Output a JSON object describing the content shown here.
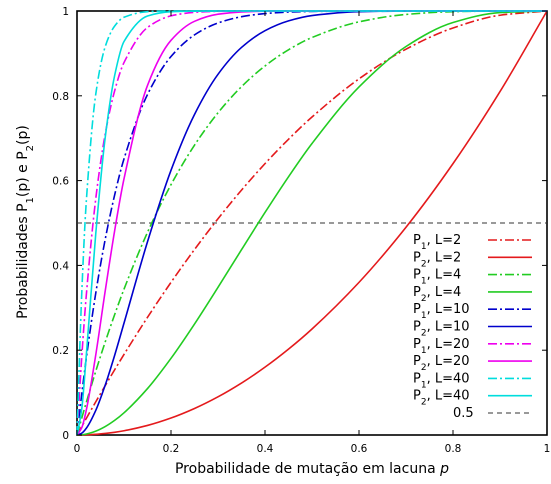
{
  "chart_data": {
    "type": "line",
    "xlabel": "Probabilidade de mutação em lacuna",
    "xlabel_var": "p",
    "ylabel": "Probabilidades P",
    "ylabel_sub1": "1",
    "ylabel_mid": "(p) e P",
    "ylabel_sub2": "2",
    "ylabel_end": "(p)",
    "xlim": [
      0,
      1
    ],
    "ylim": [
      0,
      1
    ],
    "xticks": [
      0,
      0.2,
      0.4,
      0.6,
      0.8,
      1
    ],
    "xtick_labels": [
      "0",
      "0.2",
      "0.4",
      "0.6",
      "0.8",
      "1"
    ],
    "yticks": [
      0,
      0.2,
      0.4,
      0.6,
      0.8,
      1
    ],
    "ytick_labels": [
      "0",
      "0.2",
      "0.4",
      "0.6",
      "0.8",
      "1"
    ],
    "grid": false,
    "legend_position": "bottom-right",
    "x": [
      0,
      0.01,
      0.02,
      0.04,
      0.06,
      0.08,
      0.1,
      0.15,
      0.2,
      0.25,
      0.3,
      0.35,
      0.4,
      0.45,
      0.5,
      0.6,
      0.7,
      0.8,
      0.9,
      1
    ],
    "series": [
      {
        "P": "1",
        "L": "2",
        "color": "#e41a1c",
        "dash": "dashdot",
        "values": [
          0,
          0.0199,
          0.0396,
          0.0784,
          0.1164,
          0.1536,
          0.19,
          0.2775,
          0.36,
          0.4375,
          0.51,
          0.5775,
          0.64,
          0.6975,
          0.75,
          0.84,
          0.91,
          0.96,
          0.99,
          1
        ]
      },
      {
        "P": "2",
        "L": "2",
        "color": "#e41a1c",
        "dash": "solid",
        "values": [
          0,
          0.0001,
          0.0004,
          0.0016,
          0.0036,
          0.0064,
          0.01,
          0.0225,
          0.04,
          0.0625,
          0.09,
          0.1225,
          0.16,
          0.2025,
          0.25,
          0.36,
          0.49,
          0.64,
          0.81,
          1
        ]
      },
      {
        "P": "1",
        "L": "4",
        "color": "#22cc22",
        "dash": "dashdot",
        "values": [
          0,
          0.0394,
          0.0776,
          0.1507,
          0.2193,
          0.2836,
          0.3439,
          0.478,
          0.5904,
          0.6836,
          0.7599,
          0.8215,
          0.8704,
          0.9085,
          0.9375,
          0.9744,
          0.9919,
          0.9984,
          0.9999,
          1
        ]
      },
      {
        "P": "2",
        "L": "4",
        "color": "#22cc22",
        "dash": "solid",
        "values": [
          0,
          0.0006,
          0.0023,
          0.0091,
          0.0199,
          0.0344,
          0.0523,
          0.1095,
          0.1808,
          0.2617,
          0.3483,
          0.437,
          0.5248,
          0.609,
          0.6875,
          0.8208,
          0.9163,
          0.9728,
          0.9963,
          1
        ]
      },
      {
        "P": "1",
        "L": "10",
        "color": "#0000cc",
        "dash": "dashdot",
        "values": [
          0,
          0.0956,
          0.1829,
          0.3352,
          0.4614,
          0.5656,
          0.6513,
          0.8031,
          0.8926,
          0.9437,
          0.9718,
          0.9865,
          0.994,
          0.9975,
          0.999,
          0.9999,
          1,
          1,
          1,
          1
        ]
      },
      {
        "P": "2",
        "L": "10",
        "color": "#0000cc",
        "dash": "solid",
        "values": [
          0,
          0.0043,
          0.0162,
          0.0582,
          0.1176,
          0.1876,
          0.2639,
          0.4557,
          0.6242,
          0.756,
          0.8507,
          0.914,
          0.9536,
          0.9767,
          0.9893,
          0.9983,
          0.9999,
          1,
          1,
          1
        ]
      },
      {
        "P": "1",
        "L": "20",
        "color": "#ee00ee",
        "dash": "dashdot",
        "values": [
          0,
          0.1821,
          0.3324,
          0.558,
          0.7099,
          0.8113,
          0.8784,
          0.9612,
          0.9885,
          0.9968,
          0.9992,
          0.9998,
          1,
          1,
          1,
          1,
          1,
          1,
          1,
          1
        ]
      },
      {
        "P": "2",
        "L": "20",
        "color": "#ee00ee",
        "dash": "solid",
        "values": [
          0,
          0.0169,
          0.0599,
          0.1897,
          0.3395,
          0.4811,
          0.6042,
          0.8245,
          0.9308,
          0.9757,
          0.9924,
          0.9979,
          0.9995,
          0.9999,
          1,
          1,
          1,
          1,
          1,
          1
        ]
      },
      {
        "P": "1",
        "L": "40",
        "color": "#00dddd",
        "dash": "dashdot",
        "values": [
          0,
          0.331,
          0.5543,
          0.8046,
          0.9158,
          0.9644,
          0.9852,
          0.9985,
          0.9999,
          1,
          1,
          1,
          1,
          1,
          1,
          1,
          1,
          1,
          1,
          1
        ]
      },
      {
        "P": "2",
        "L": "40",
        "color": "#00dddd",
        "dash": "solid",
        "values": [
          0,
          0.0607,
          0.1912,
          0.4759,
          0.7013,
          0.8473,
          0.9281,
          0.9882,
          0.9983,
          0.9998,
          1,
          1,
          1,
          1,
          1,
          1,
          1,
          1,
          1,
          1
        ]
      }
    ],
    "reference_line": {
      "value": 0.5,
      "label": "0.5",
      "color": "#333333"
    },
    "legend_entries": [
      {
        "prefix": "P",
        "sub": "1",
        "suffix": ", L=2"
      },
      {
        "prefix": "P",
        "sub": "2",
        "suffix": ", L=2"
      },
      {
        "prefix": "P",
        "sub": "1",
        "suffix": ", L=4"
      },
      {
        "prefix": "P",
        "sub": "2",
        "suffix": ", L=4"
      },
      {
        "prefix": "P",
        "sub": "1",
        "suffix": ", L=10"
      },
      {
        "prefix": "P",
        "sub": "2",
        "suffix": ", L=10"
      },
      {
        "prefix": "P",
        "sub": "1",
        "suffix": ", L=20"
      },
      {
        "prefix": "P",
        "sub": "2",
        "suffix": ", L=20"
      },
      {
        "prefix": "P",
        "sub": "1",
        "suffix": ", L=40"
      },
      {
        "prefix": "P",
        "sub": "2",
        "suffix": ", L=40"
      }
    ]
  }
}
